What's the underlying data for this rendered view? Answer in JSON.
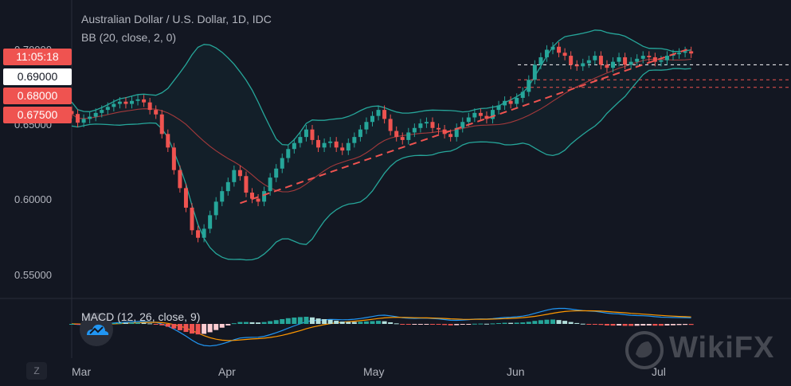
{
  "header": {
    "title": "Australian Dollar / U.S. Dollar, 1D, IDC",
    "bb_legend": "BB (20, close, 2, 0)",
    "macd_legend": "MACD (12, 26, close, 9)"
  },
  "price_tags": [
    {
      "text": "11:05:18",
      "bg": "#ef5350",
      "fg": "#ffffff"
    },
    {
      "text": "0.69000",
      "bg": "#ffffff",
      "fg": "#131722"
    },
    {
      "text": "0.68000",
      "bg": "#ef5350",
      "fg": "#ffffff"
    },
    {
      "text": "0.67500",
      "bg": "#ef5350",
      "fg": "#ffffff"
    }
  ],
  "footer": {
    "z_button": "Z",
    "watermark": "WikiFX"
  },
  "colors": {
    "background": "#131722",
    "up": "#26a69a",
    "down": "#ef5350",
    "bollinger": "#26a69a",
    "basis": "#a3393b",
    "trendline": "#ef5350",
    "macd_line": "#2196f3",
    "signal_line": "#ff9800"
  },
  "chart_data": {
    "type": "candlestick",
    "title": "Australian Dollar / U.S. Dollar, 1D, IDC",
    "y_ticks": [
      "0.55000",
      "0.60000",
      "0.65000",
      "0.70000"
    ],
    "x_ticks": [
      "Mar",
      "Apr",
      "May",
      "Jun",
      "Jul"
    ],
    "ylim": [
      0.535,
      0.725
    ],
    "x_start": "2020-02-25",
    "candles_close": [
      0.6573,
      0.6515,
      0.654,
      0.6555,
      0.658,
      0.66,
      0.662,
      0.664,
      0.6655,
      0.664,
      0.666,
      0.667,
      0.665,
      0.66,
      0.657,
      0.644,
      0.635,
      0.62,
      0.608,
      0.595,
      0.58,
      0.575,
      0.581,
      0.59,
      0.599,
      0.606,
      0.612,
      0.62,
      0.616,
      0.605,
      0.601,
      0.599,
      0.606,
      0.615,
      0.621,
      0.628,
      0.634,
      0.638,
      0.642,
      0.647,
      0.64,
      0.635,
      0.638,
      0.639,
      0.635,
      0.633,
      0.638,
      0.642,
      0.647,
      0.652,
      0.656,
      0.66,
      0.654,
      0.646,
      0.642,
      0.64,
      0.645,
      0.648,
      0.651,
      0.652,
      0.648,
      0.647,
      0.644,
      0.642,
      0.648,
      0.652,
      0.655,
      0.658,
      0.656,
      0.654,
      0.66,
      0.663,
      0.666,
      0.664,
      0.668,
      0.672,
      0.68,
      0.69,
      0.695,
      0.7,
      0.702,
      0.698,
      0.696,
      0.69,
      0.689,
      0.691,
      0.693,
      0.696,
      0.69,
      0.688,
      0.692,
      0.695,
      0.69,
      0.692,
      0.694,
      0.696,
      0.695,
      0.692,
      0.693,
      0.696,
      0.697,
      0.698,
      0.699,
      0.6975
    ],
    "support_line": {
      "from": [
        "2020-04-03",
        0.598
      ],
      "to": [
        "2020-07-15",
        0.6975
      ]
    },
    "horizontal_levels": [
      0.69,
      0.68,
      0.675
    ],
    "bollinger": {
      "length": 20,
      "source": "close",
      "mult": 2,
      "offset": 0
    },
    "macd": {
      "fast": 12,
      "slow": 26,
      "source": "close",
      "signal": 9
    }
  }
}
